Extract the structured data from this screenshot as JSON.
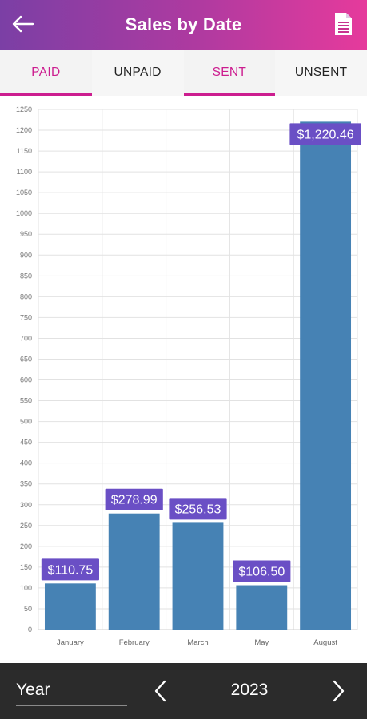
{
  "header": {
    "title": "Sales by Date",
    "back_icon": "arrow-left-icon",
    "report_icon": "document-icon",
    "gradient": [
      "#7b3fa5",
      "#e63a9c"
    ]
  },
  "tabs": [
    {
      "label": "PAID",
      "active": true
    },
    {
      "label": "UNPAID",
      "active": false
    },
    {
      "label": "SENT",
      "active": true
    },
    {
      "label": "UNSENT",
      "active": false
    }
  ],
  "colors": {
    "accent": "#cc1d8f",
    "bar": "#4682b4",
    "label_bg": "#6a4fc5"
  },
  "chart_data": {
    "type": "bar",
    "categories": [
      "January",
      "February",
      "March",
      "May",
      "August"
    ],
    "values": [
      110.75,
      278.99,
      256.53,
      106.5,
      1220.46
    ],
    "value_labels": [
      "$110.75",
      "$278.99",
      "$256.53",
      "$106.50",
      "$1,220.46"
    ],
    "title": "",
    "xlabel": "",
    "ylabel": "",
    "ylim": [
      0,
      1250
    ],
    "yticks": [
      0,
      50,
      100,
      150,
      200,
      250,
      300,
      350,
      400,
      450,
      500,
      550,
      600,
      650,
      700,
      750,
      800,
      850,
      900,
      950,
      1000,
      1050,
      1100,
      1150,
      1200,
      1250
    ],
    "grid": true,
    "legend": "none"
  },
  "footer": {
    "filter_label": "Year",
    "year": "2023",
    "prev_icon": "chevron-left-icon",
    "next_icon": "chevron-right-icon"
  }
}
